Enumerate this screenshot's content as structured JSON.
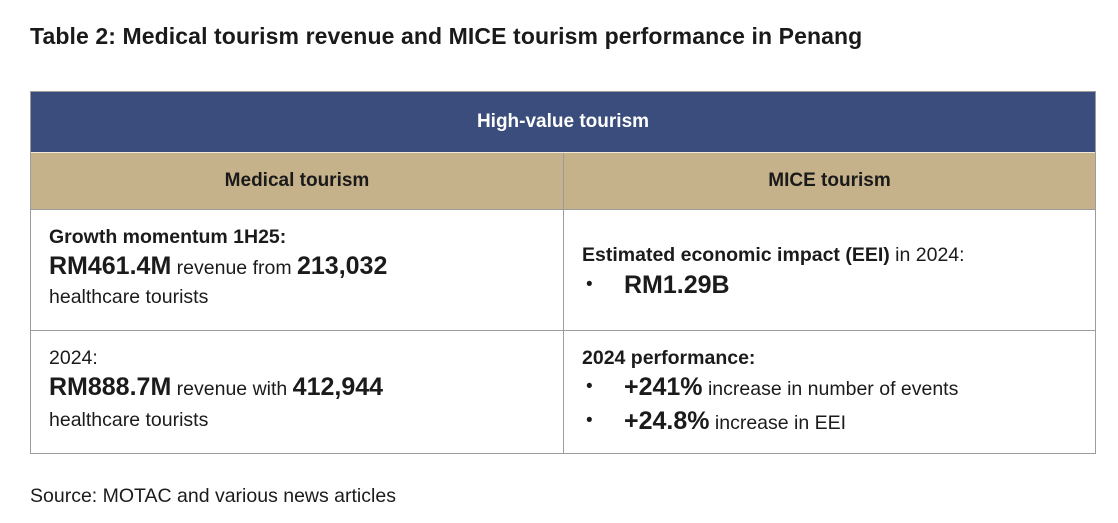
{
  "title": "Table 2: Medical tourism revenue and MICE tourism performance in Penang",
  "table": {
    "banner": "High-value tourism",
    "headers": [
      "Medical tourism",
      "MICE tourism"
    ],
    "medical": {
      "row1": {
        "label": "Growth momentum 1H25:",
        "revenue": "RM461.4M",
        "mid": " revenue from ",
        "tourists": "213,032",
        "suffix": "healthcare tourists"
      },
      "row2": {
        "label": "2024:",
        "revenue": "RM888.7M",
        "mid": " revenue with ",
        "tourists": "412,944",
        "suffix": "healthcare tourists"
      }
    },
    "mice": {
      "row1": {
        "label_bold": "Estimated economic impact (EEI)",
        "label_rest": " in 2024:",
        "bullet": "•",
        "value": "RM1.29B"
      },
      "row2": {
        "label": "2024 performance:",
        "items": [
          {
            "value": "+241%",
            "text": " increase in number of events"
          },
          {
            "value": "+24.8%",
            "text": " increase in EEI"
          }
        ]
      }
    }
  },
  "source": "Source: MOTAC and various news articles"
}
